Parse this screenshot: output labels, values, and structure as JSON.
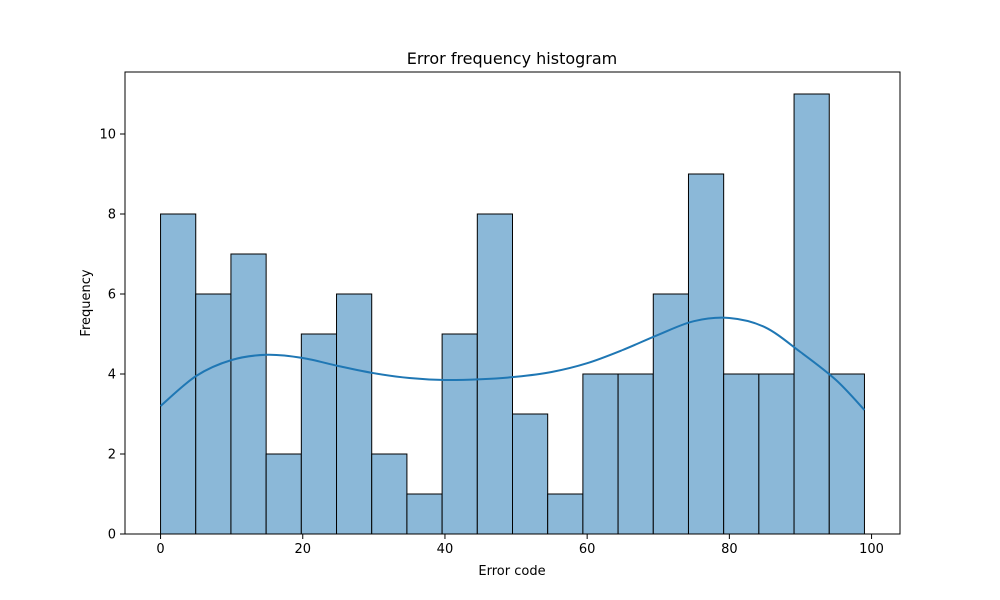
{
  "chart_data": {
    "type": "bar",
    "title": "Error frequency histogram",
    "xlabel": "Error code",
    "ylabel": "Frequency",
    "bin_edges": [
      0,
      4.95,
      9.9,
      14.85,
      19.8,
      24.75,
      29.7,
      34.65,
      39.6,
      44.55,
      49.5,
      54.45,
      59.4,
      64.35,
      69.3,
      74.25,
      79.2,
      84.15,
      89.1,
      94.05,
      99
    ],
    "values": [
      8,
      6,
      7,
      2,
      5,
      6,
      2,
      1,
      5,
      8,
      3,
      1,
      4,
      4,
      6,
      9,
      4,
      4,
      11,
      4
    ],
    "kde": {
      "x": [
        0,
        5,
        10,
        15,
        20,
        25,
        30,
        35,
        40,
        45,
        50,
        55,
        60,
        65,
        70,
        75,
        80,
        85,
        90,
        95,
        99
      ],
      "y": [
        3.2,
        3.95,
        4.35,
        4.48,
        4.4,
        4.2,
        4.02,
        3.9,
        3.85,
        3.87,
        3.93,
        4.05,
        4.27,
        4.6,
        4.98,
        5.32,
        5.4,
        5.17,
        4.55,
        3.85,
        3.1
      ]
    },
    "xlim": [
      -5,
      104
    ],
    "ylim": [
      0,
      11.55
    ],
    "xticks": [
      0,
      20,
      40,
      60,
      80,
      100
    ],
    "yticks": [
      0,
      2,
      4,
      6,
      8,
      10
    ],
    "colors": {
      "bar_fill": "#8bb8d8",
      "bar_edge": "#000000",
      "kde_line": "#1f77b4"
    },
    "grid": false,
    "legend": "none"
  }
}
